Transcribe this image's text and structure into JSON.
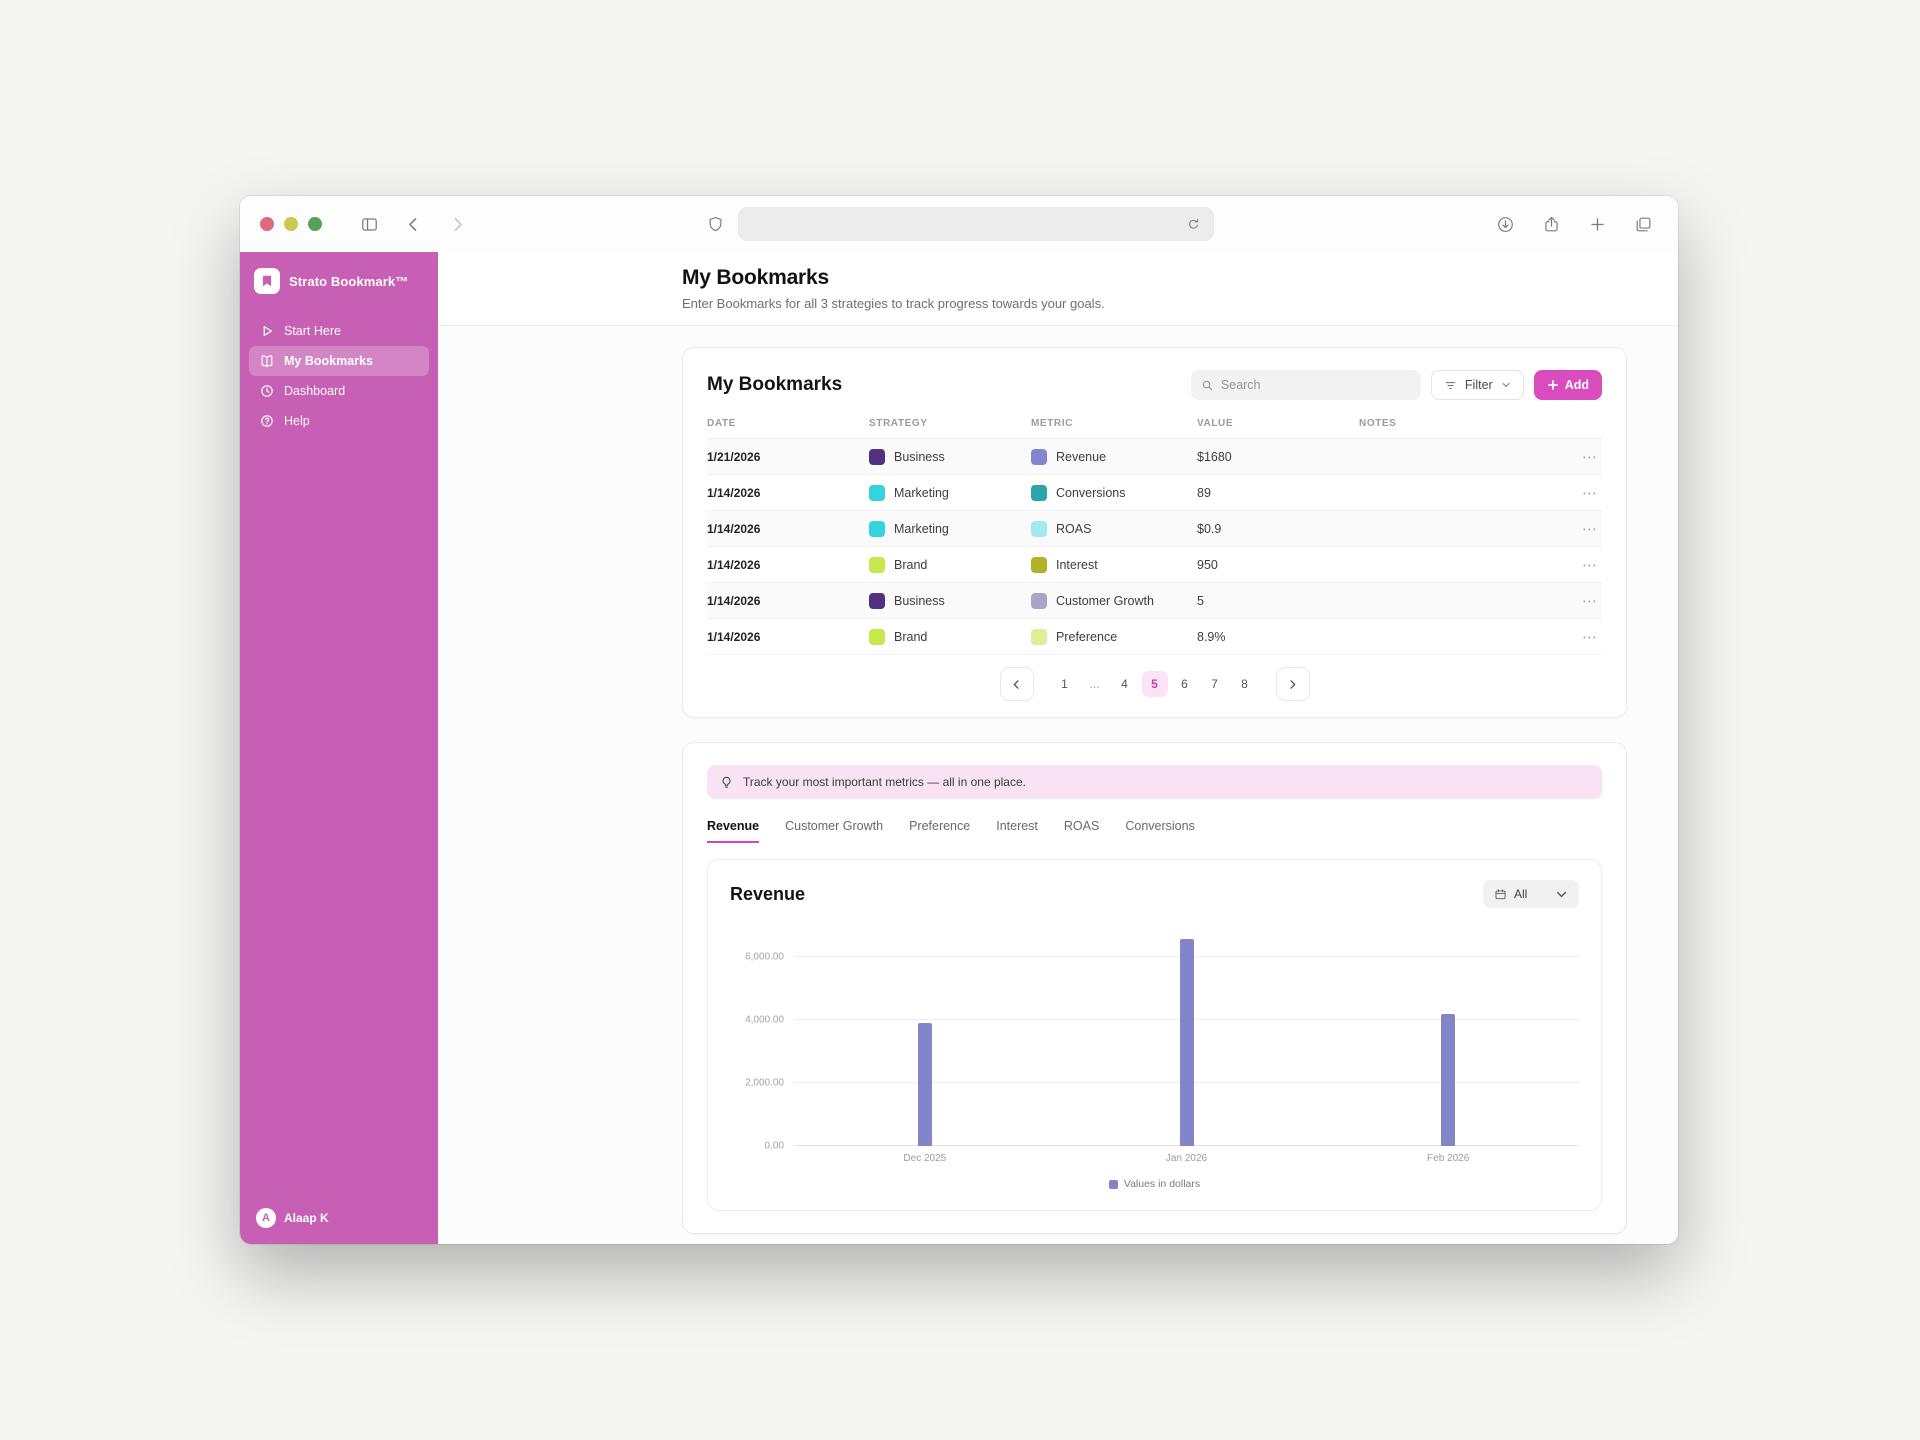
{
  "colors": {
    "sidebar": "#c75fb4",
    "accent_pink": "#d84cbe",
    "banner_bg": "#f8e2f3",
    "pagination_active_bg": "#fbe3f5",
    "bar": "#8286c9"
  },
  "browser": {
    "url_value": ""
  },
  "sidebar": {
    "app_name": "Strato Bookmark™",
    "items": [
      {
        "label": "Start Here",
        "icon": "play-icon",
        "active": false
      },
      {
        "label": "My Bookmarks",
        "icon": "book-icon",
        "active": true
      },
      {
        "label": "Dashboard",
        "icon": "clock-icon",
        "active": false
      },
      {
        "label": "Help",
        "icon": "help-icon",
        "active": false
      }
    ],
    "user": {
      "initial": "A",
      "name": "Alaap K"
    }
  },
  "page": {
    "title": "My Bookmarks",
    "subtitle": "Enter Bookmarks for all 3 strategies to track progress towards your goals."
  },
  "bookmarks_card": {
    "title": "My Bookmarks",
    "search_placeholder": "Search",
    "filter_label": "Filter",
    "add_label": "Add",
    "columns": [
      "DATE",
      "STRATEGY",
      "METRIC",
      "VALUE",
      "NOTES"
    ],
    "rows": [
      {
        "date": "1/21/2026",
        "strategy": "Business",
        "strategy_color": "#53317f",
        "metric": "Revenue",
        "metric_color": "#8187ce",
        "value": "$1680",
        "notes": ""
      },
      {
        "date": "1/14/2026",
        "strategy": "Marketing",
        "strategy_color": "#35d3de",
        "metric": "Conversions",
        "metric_color": "#2ba5ab",
        "value": "89",
        "notes": ""
      },
      {
        "date": "1/14/2026",
        "strategy": "Marketing",
        "strategy_color": "#35d3de",
        "metric": "ROAS",
        "metric_color": "#a5e9f0",
        "value": "$0.9",
        "notes": ""
      },
      {
        "date": "1/14/2026",
        "strategy": "Brand",
        "strategy_color": "#c5e94a",
        "metric": "Interest",
        "metric_color": "#b2b22a",
        "value": "950",
        "notes": ""
      },
      {
        "date": "1/14/2026",
        "strategy": "Business",
        "strategy_color": "#53317f",
        "metric": "Customer Growth",
        "metric_color": "#a8a6c6",
        "metric_pattern": true,
        "value": "5",
        "notes": ""
      },
      {
        "date": "1/14/2026",
        "strategy": "Brand",
        "strategy_color": "#c5e94a",
        "metric": "Preference",
        "metric_color": "#d9f096",
        "value": "8.9%",
        "notes": ""
      }
    ],
    "pagination": {
      "pages": [
        "1",
        "...",
        "4",
        "5",
        "6",
        "7",
        "8"
      ],
      "active": "5"
    }
  },
  "metrics_card": {
    "banner": "Track your most important metrics — all in one place.",
    "tabs": [
      {
        "label": "Revenue",
        "active": true
      },
      {
        "label": "Customer Growth",
        "active": false
      },
      {
        "label": "Preference",
        "active": false
      },
      {
        "label": "Interest",
        "active": false
      },
      {
        "label": "ROAS",
        "active": false
      },
      {
        "label": "Conversions",
        "active": false
      }
    ]
  },
  "chart_card": {
    "title": "Revenue",
    "range_label": "All",
    "legend": "Values in dollars"
  },
  "chart_data": {
    "type": "bar",
    "title": "Revenue",
    "categories": [
      "Dec 2025",
      "Jan 2026",
      "Feb 2026"
    ],
    "values": [
      3900,
      6600,
      4200
    ],
    "xlabel": "",
    "ylabel": "",
    "ylim": [
      0,
      7000
    ],
    "yticks": [
      0,
      2000,
      4000,
      6000
    ],
    "ytick_labels": [
      "0.00",
      "2,000.00",
      "4,000.00",
      "6,000.00"
    ],
    "bar_color": "#8286c9",
    "grid": true,
    "legend_position": "bottom",
    "legend_entries": [
      "Values in dollars"
    ]
  }
}
